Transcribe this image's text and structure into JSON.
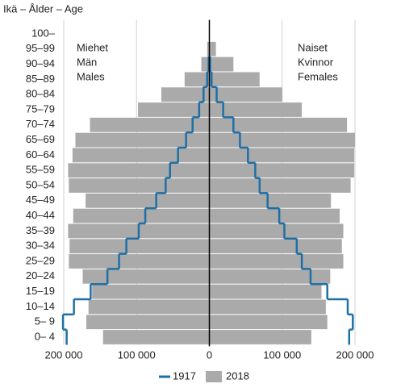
{
  "chart_data": {
    "type": "population-pyramid",
    "y_axis_label": "Ikä – Ålder – Age",
    "left_label": [
      "Miehet",
      "Män",
      "Males"
    ],
    "right_label": [
      "Naiset",
      "Kvinnor",
      "Females"
    ],
    "categories": [
      "0– 4",
      "5– 9",
      "10–14",
      "15–19",
      "20–24",
      "25–29",
      "30–34",
      "35–39",
      "40–44",
      "45–49",
      "50–54",
      "55–59",
      "60–64",
      "65–69",
      "70–74",
      "75–79",
      "80–84",
      "85–89",
      "90–94",
      "95–99",
      "100–"
    ],
    "series": [
      {
        "name": "1917",
        "color": "#1f6fa5",
        "style": "step",
        "males": [
          196000,
          201000,
          186000,
          163000,
          140000,
          124000,
          114000,
          97000,
          88000,
          73000,
          60000,
          54000,
          43000,
          32000,
          23000,
          14000,
          8000,
          3000,
          1000,
          0,
          0
        ],
        "females": [
          192000,
          197000,
          190000,
          162000,
          139000,
          127000,
          120000,
          103000,
          96000,
          80000,
          69000,
          63000,
          53000,
          42000,
          33000,
          19000,
          10000,
          3000,
          1000,
          0,
          0
        ]
      },
      {
        "name": "2018",
        "color": "#aaaaaa",
        "style": "bar",
        "males": [
          146000,
          169000,
          166000,
          161000,
          174000,
          193000,
          192000,
          194000,
          187000,
          170000,
          193000,
          194000,
          188000,
          184000,
          164000,
          98000,
          66000,
          34000,
          11000,
          3000,
          0
        ],
        "females": [
          140000,
          162000,
          160000,
          154000,
          166000,
          184000,
          182000,
          184000,
          179000,
          167000,
          194000,
          199000,
          199000,
          200000,
          189000,
          127000,
          100000,
          69000,
          33000,
          9000,
          0
        ]
      }
    ],
    "xlim": [
      -200000,
      200000
    ],
    "xticks": [
      {
        "value": -200000,
        "label": "200 000"
      },
      {
        "value": -100000,
        "label": "100 000"
      },
      0,
      {
        "value": 100000,
        "label": "100 000"
      },
      {
        "value": 200000,
        "label": "200 000"
      }
    ],
    "grid": true
  }
}
